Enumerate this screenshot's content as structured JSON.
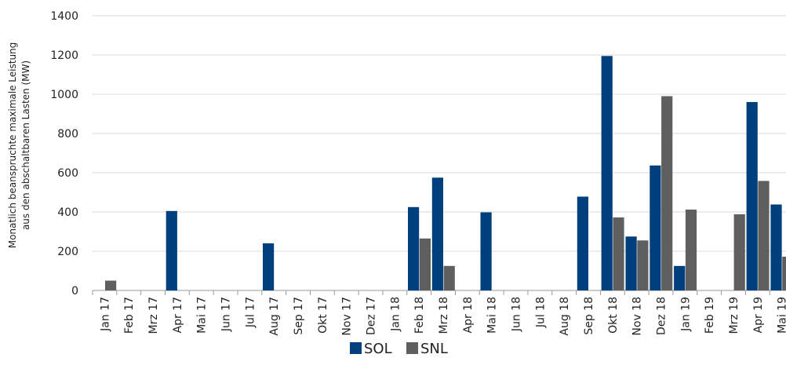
{
  "chart_data": {
    "type": "bar",
    "title": "",
    "ylabel_line1": "Monatlich beanspruchte maximale Leistung",
    "ylabel_line2": "aus den abschaltbaren Lasten (MW)",
    "xlabel": "",
    "ylim": [
      0,
      1400
    ],
    "yticks": [
      0,
      200,
      400,
      600,
      800,
      1000,
      1200,
      1400
    ],
    "grid": true,
    "legend_position": "bottom",
    "categories": [
      "Jan 17",
      "Feb 17",
      "Mrz 17",
      "Apr 17",
      "Mai 17",
      "Jun 17",
      "Jul 17",
      "Aug 17",
      "Sep 17",
      "Okt 17",
      "Nov 17",
      "Dez 17",
      "Jan 18",
      "Feb 18",
      "Mrz 18",
      "Apr 18",
      "Mai 18",
      "Jun 18",
      "Jul 18",
      "Aug 18",
      "Sep 18",
      "Okt 18",
      "Nov 18",
      "Dez 18",
      "Jan 19",
      "Feb 19",
      "Mrz 19",
      "Apr 19",
      "Mai 19"
    ],
    "series": [
      {
        "name": "SOL",
        "color": "#003f7d",
        "values": [
          0,
          0,
          0,
          405,
          0,
          0,
          0,
          240,
          0,
          0,
          0,
          0,
          0,
          425,
          575,
          0,
          398,
          0,
          0,
          0,
          478,
          1195,
          275,
          637,
          125,
          0,
          0,
          960,
          438
        ]
      },
      {
        "name": "SNL",
        "color": "#5f5f5f",
        "values": [
          50,
          0,
          0,
          0,
          0,
          0,
          0,
          0,
          0,
          0,
          0,
          0,
          0,
          265,
          125,
          0,
          0,
          0,
          0,
          0,
          0,
          372,
          255,
          990,
          412,
          0,
          388,
          558,
          172
        ]
      }
    ]
  }
}
